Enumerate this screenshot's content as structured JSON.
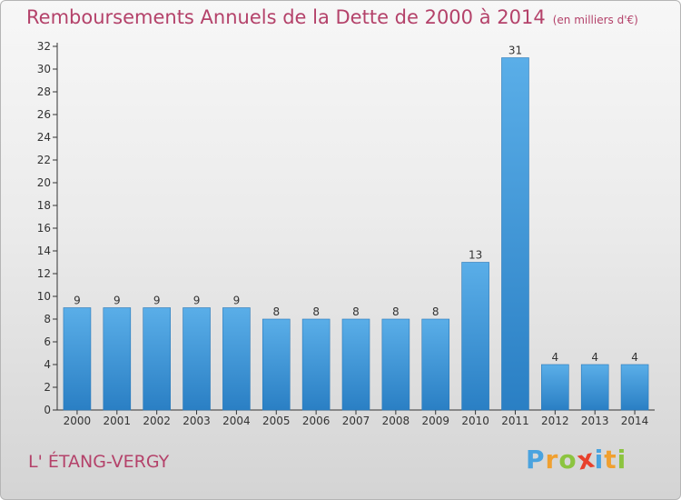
{
  "chart_data": {
    "type": "bar",
    "title": "Remboursements Annuels de la Dette de 2000 à 2014",
    "unit_label": "(en milliers d'€)",
    "categories": [
      "2000",
      "2001",
      "2002",
      "2003",
      "2004",
      "2005",
      "2006",
      "2007",
      "2008",
      "2009",
      "2010",
      "2011",
      "2012",
      "2013",
      "2014"
    ],
    "values": [
      9,
      9,
      9,
      9,
      9,
      8,
      8,
      8,
      8,
      8,
      13,
      31,
      4,
      4,
      4
    ],
    "ylim": [
      0,
      32
    ],
    "yticks": [
      0,
      2,
      4,
      6,
      8,
      10,
      12,
      14,
      16,
      18,
      20,
      22,
      24,
      26,
      28,
      30,
      32
    ],
    "xlabel": "",
    "ylabel": "",
    "grid": false,
    "bar_color": "#3f9be0",
    "title_color": "#b4426a"
  },
  "commune": "L' ÉTANG-VERGY",
  "logo": {
    "text": "Proxiti",
    "letters": [
      {
        "ch": "P",
        "color": "#4aa3df"
      },
      {
        "ch": "r",
        "color": "#f0a030"
      },
      {
        "ch": "o",
        "color": "#8cc43f"
      },
      {
        "ch": "x",
        "color": "#e8412c"
      },
      {
        "ch": "i",
        "color": "#4aa3df"
      },
      {
        "ch": "t",
        "color": "#f0a030"
      },
      {
        "ch": "i",
        "color": "#8cc43f"
      }
    ]
  }
}
